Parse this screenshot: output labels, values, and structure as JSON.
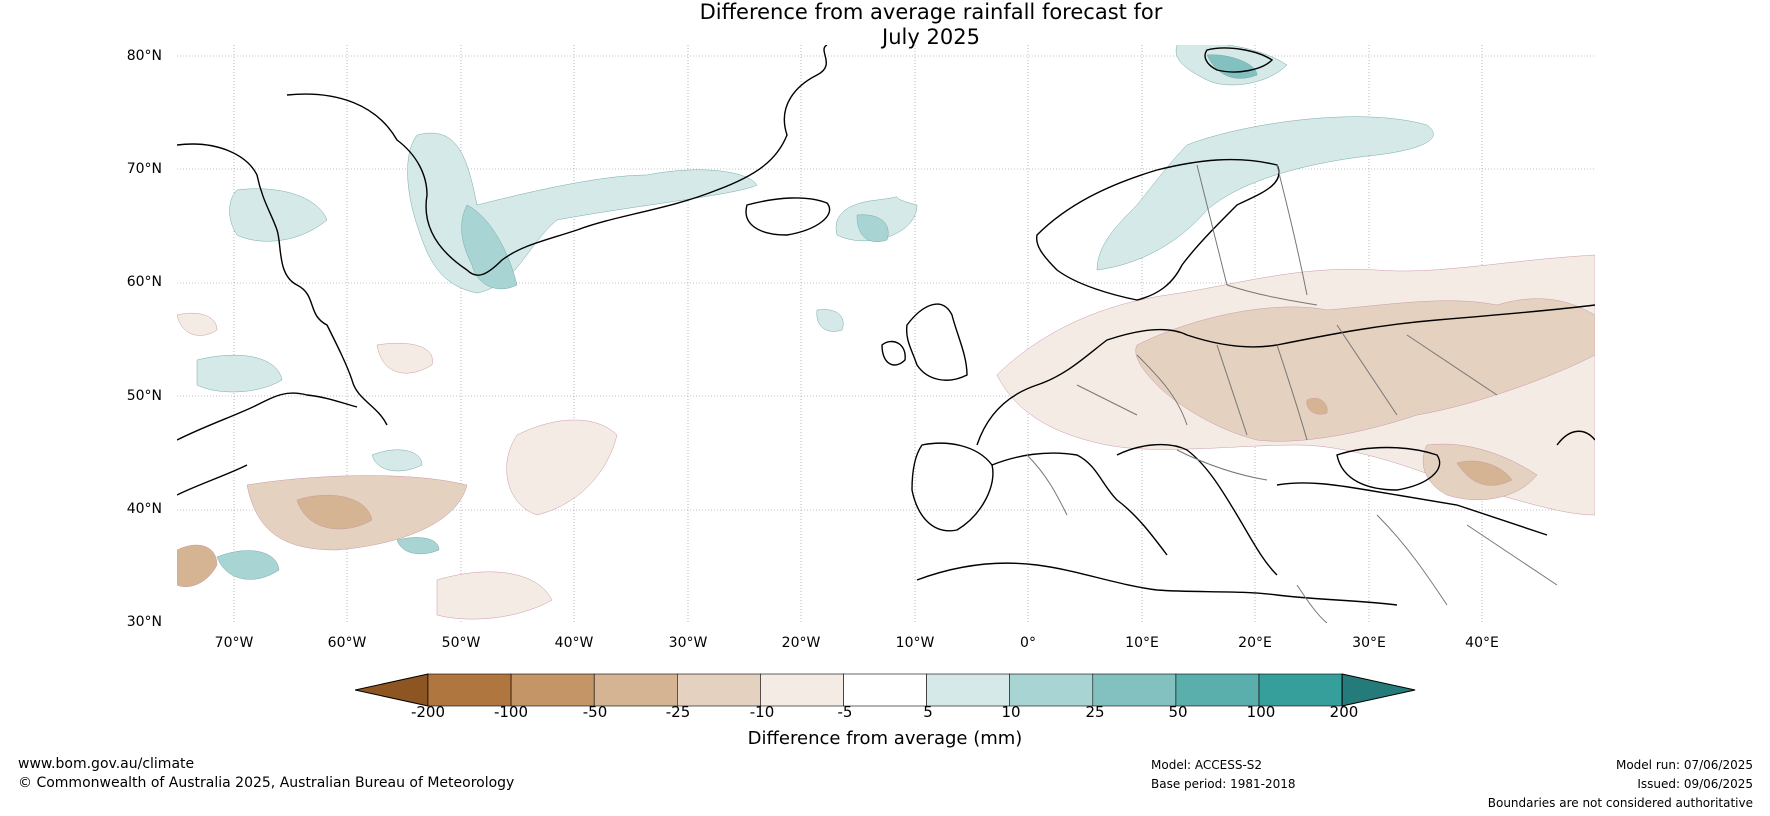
{
  "title": {
    "line1": "Difference from average rainfall forecast for",
    "line2": "July 2025"
  },
  "map": {
    "lat_ticks": [
      "80°N",
      "70°N",
      "60°N",
      "50°N",
      "40°N",
      "30°N"
    ],
    "lon_ticks": [
      "70°W",
      "60°W",
      "50°W",
      "40°W",
      "30°W",
      "20°W",
      "10°W",
      "0°",
      "10°E",
      "20°E",
      "30°E",
      "40°E"
    ],
    "extent_deg": {
      "lon_min": -75,
      "lon_max": 50,
      "lat_min": 30,
      "lat_max": 81
    }
  },
  "colorbar": {
    "ticks": [
      "-200",
      "-100",
      "-50",
      "-25",
      "-10",
      "-5",
      "5",
      "10",
      "25",
      "50",
      "100",
      "200"
    ],
    "colors": [
      "#8c5521",
      "#b07640",
      "#c49566",
      "#d4b493",
      "#e4d1bf",
      "#f3ebe4",
      "#ffffff",
      "#d4e9e8",
      "#a8d4d3",
      "#82c1bf",
      "#5aaeab",
      "#369f9b",
      "#257b79"
    ],
    "label": "Difference from average (mm)"
  },
  "footer": {
    "website": "www.bom.gov.au/climate",
    "copyright": "© Commonwealth of Australia 2025, Australian Bureau of Meteorology",
    "model": "Model: ACCESS-S2",
    "base_period": "Base period: 1981-2018",
    "model_run": "Model run: 07/06/2025",
    "issued": "Issued: 09/06/2025",
    "disclaimer": "Boundaries are not considered authoritative"
  }
}
